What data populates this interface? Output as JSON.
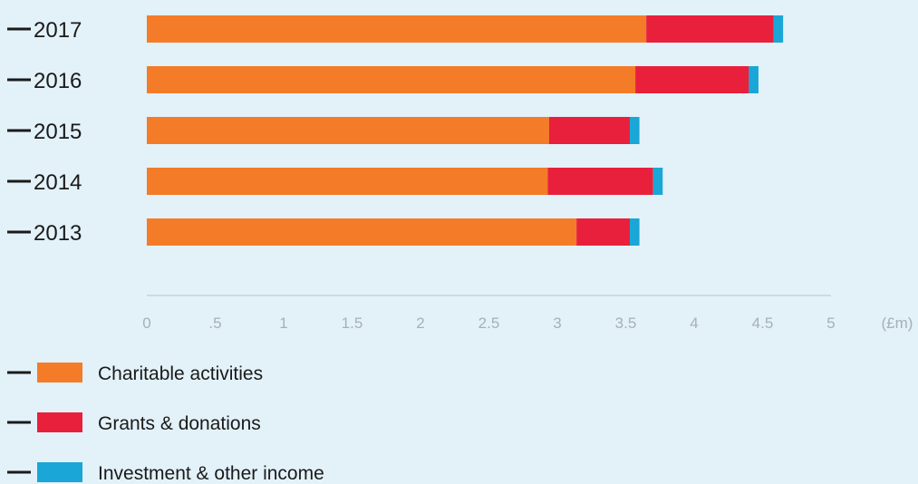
{
  "chart_data": {
    "type": "bar",
    "orientation": "horizontal",
    "stacked": true,
    "categories": [
      "2017",
      "2016",
      "2015",
      "2014",
      "2013"
    ],
    "series": [
      {
        "name": "Charitable activities",
        "color": "#f47c28",
        "values": [
          3.65,
          3.57,
          2.94,
          2.93,
          3.14
        ]
      },
      {
        "name": "Grants & donations",
        "color": "#e8203c",
        "values": [
          0.93,
          0.83,
          0.59,
          0.77,
          0.39
        ]
      },
      {
        "name": "Investment & other income",
        "color": "#1aa6d6",
        "values": [
          0.07,
          0.07,
          0.07,
          0.07,
          0.07
        ]
      }
    ],
    "x_ticks": [
      "0",
      ".5",
      "1",
      "1.5",
      "2",
      "2.5",
      "3",
      "3.5",
      "4",
      "4.5",
      "5"
    ],
    "x_unit": "(£m)",
    "xlim": [
      0,
      5
    ],
    "grid": false,
    "legend_position": "bottom-left"
  }
}
